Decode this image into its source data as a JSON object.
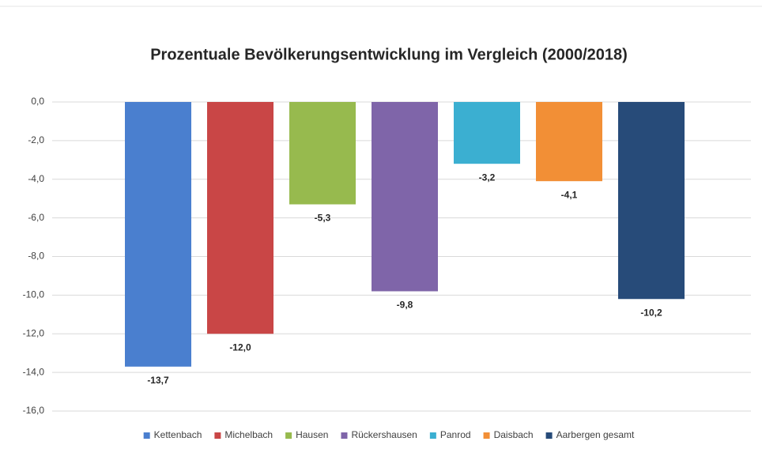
{
  "chart_data": {
    "type": "bar",
    "title": "Prozentuale Bevölkerungsentwicklung im Vergleich  (2000/2018)",
    "series": [
      {
        "name": "Kettenbach",
        "color": "#4a7fcf",
        "values": [
          -13.7
        ],
        "value_labels": [
          "-13,7"
        ]
      },
      {
        "name": "Michelbach",
        "color": "#c94646",
        "values": [
          -12.0
        ],
        "value_labels": [
          "-12,0"
        ]
      },
      {
        "name": "Hausen",
        "color": "#97ba4e",
        "values": [
          -5.3
        ],
        "value_labels": [
          "-5,3"
        ]
      },
      {
        "name": "Rückershausen",
        "color": "#7f65a9",
        "values": [
          -9.8
        ],
        "value_labels": [
          "-9,8"
        ]
      },
      {
        "name": "Panrod",
        "color": "#3bafd1",
        "values": [
          -3.2
        ],
        "value_labels": [
          "-3,2"
        ]
      },
      {
        "name": "Daisbach",
        "color": "#f28f36",
        "values": [
          -4.1
        ],
        "value_labels": [
          "-4,1"
        ]
      },
      {
        "name": "Aarbergen gesamt",
        "color": "#274b79",
        "values": [
          -10.2
        ],
        "value_labels": [
          "-10,2"
        ]
      }
    ],
    "ylim": [
      -16,
      0
    ],
    "yticks": [
      {
        "value": 0,
        "label": "0,0"
      },
      {
        "value": -2,
        "label": "-2,0"
      },
      {
        "value": -4,
        "label": "-4,0"
      },
      {
        "value": -6,
        "label": "-6,0"
      },
      {
        "value": -8,
        "label": "-8,0"
      },
      {
        "value": -10,
        "label": "-10,0"
      },
      {
        "value": -12,
        "label": "-12,0"
      },
      {
        "value": -14,
        "label": "-14,0"
      },
      {
        "value": -16,
        "label": "-16,0"
      }
    ],
    "grid": true,
    "legend": "bottom"
  }
}
